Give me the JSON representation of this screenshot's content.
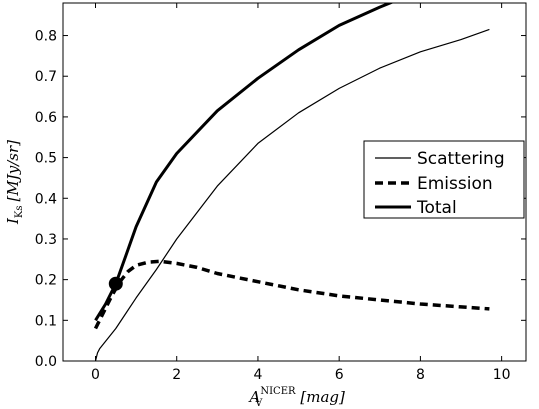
{
  "chart_data": {
    "type": "line",
    "title": "",
    "xlabel": {
      "symbol": "A",
      "superscript": "NICER",
      "subscript": "V",
      "unit": "[mag]"
    },
    "ylabel": {
      "symbol": "I",
      "subscript": "Ks",
      "unit": "[MJy/sr]"
    },
    "xlim": [
      -0.8,
      10.6
    ],
    "ylim": [
      0.0,
      0.88
    ],
    "xticks": [
      0,
      2,
      4,
      6,
      8,
      10
    ],
    "yticks": [
      0.0,
      0.1,
      0.2,
      0.3,
      0.4,
      0.5,
      0.6,
      0.7,
      0.8
    ],
    "xtick_labels": [
      "0",
      "2",
      "4",
      "6",
      "8",
      "10"
    ],
    "ytick_labels": [
      "0.0",
      "0.1",
      "0.2",
      "0.3",
      "0.4",
      "0.5",
      "0.6",
      "0.7",
      "0.8"
    ],
    "grid": false,
    "legend_position": "center-right",
    "series": [
      {
        "name": "Scattering",
        "style": "solid-thin",
        "x": [
          0,
          0.05,
          0.1,
          0.3,
          0.5,
          1.0,
          1.5,
          2.0,
          3.0,
          4.0,
          5.0,
          6.0,
          7.0,
          8.0,
          9.0,
          9.7
        ],
        "y": [
          0.0,
          0.02,
          0.03,
          0.055,
          0.08,
          0.155,
          0.225,
          0.3,
          0.43,
          0.535,
          0.61,
          0.67,
          0.72,
          0.76,
          0.79,
          0.815
        ]
      },
      {
        "name": "Emission",
        "style": "dashed-thick",
        "x": [
          0,
          0.2,
          0.4,
          0.6,
          0.8,
          1.0,
          1.3,
          1.6,
          2.0,
          2.5,
          3.0,
          4.0,
          5.0,
          6.0,
          7.0,
          8.0,
          9.0,
          9.7
        ],
        "y": [
          0.08,
          0.12,
          0.16,
          0.195,
          0.22,
          0.235,
          0.243,
          0.245,
          0.24,
          0.23,
          0.215,
          0.195,
          0.175,
          0.16,
          0.15,
          0.14,
          0.133,
          0.128
        ]
      },
      {
        "name": "Total",
        "style": "solid-thick",
        "x": [
          0,
          0.25,
          0.5,
          0.75,
          1.0,
          1.5,
          2.0,
          3.0,
          4.0,
          5.0,
          6.0,
          7.0,
          7.5
        ],
        "y": [
          0.1,
          0.14,
          0.19,
          0.26,
          0.33,
          0.44,
          0.51,
          0.615,
          0.695,
          0.765,
          0.825,
          0.87,
          0.89
        ]
      }
    ],
    "marker": {
      "x": 0.5,
      "y": 0.19,
      "shape": "filled-circle"
    },
    "colors": {
      "line": "#000000",
      "background": "#ffffff"
    }
  }
}
